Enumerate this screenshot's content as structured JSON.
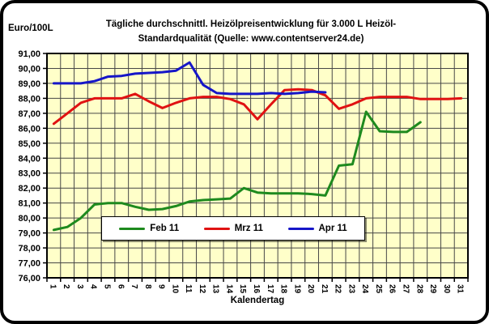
{
  "header": {
    "title_line1": "Tägliche durchschnittl. Heizölpreisentwicklung für 3.000 L Heizöl-",
    "title_line2": "Standardqualität (Quelle: www.contentserver24.de)"
  },
  "chart_data": {
    "type": "line",
    "title": "Tägliche durchschnittl. Heizölpreisentwicklung für 3.000 L Heizöl-Standardqualität (Quelle: www.contentserver24.de)",
    "xlabel": "Kalendertag",
    "ylabel": "Euro/100L",
    "ylim": [
      76,
      91
    ],
    "y_tick_step": 1,
    "grid": true,
    "plot_bg": "#ffffc9",
    "grid_color": "#474747",
    "axis_color": "#000000",
    "legend_position": "inside-bottom",
    "y_tick_labels": [
      "91,00",
      "90,00",
      "89,00",
      "88,00",
      "87,00",
      "86,00",
      "85,00",
      "84,00",
      "83,00",
      "82,00",
      "81,00",
      "80,00",
      "79,00",
      "78,00",
      "77,00",
      "76,00"
    ],
    "x_tick_labels": [
      "1",
      "2",
      "3",
      "4",
      "5",
      "6",
      "7",
      "8",
      "9",
      "10",
      "11",
      "12",
      "13",
      "14",
      "15",
      "16",
      "17",
      "18",
      "19",
      "20",
      "21",
      "22",
      "23",
      "24",
      "25",
      "26",
      "27",
      "28",
      "29",
      "30",
      "31"
    ],
    "series": [
      {
        "name": "Feb 11",
        "color": "#1e8a1e",
        "x_start": 1,
        "values": [
          79.2,
          79.4,
          80.0,
          80.9,
          81.0,
          81.0,
          80.75,
          80.55,
          80.6,
          80.8,
          81.1,
          81.2,
          81.25,
          81.3,
          82.0,
          81.7,
          81.65,
          81.65,
          81.65,
          81.6,
          81.5,
          83.5,
          83.6,
          87.1,
          85.8,
          85.75,
          85.75,
          86.4
        ]
      },
      {
        "name": "Mrz 11",
        "color": "#e01212",
        "x_start": 1,
        "values": [
          86.3,
          87.0,
          87.7,
          88.0,
          88.0,
          88.0,
          88.3,
          87.8,
          87.35,
          87.7,
          88.0,
          88.1,
          88.1,
          87.95,
          87.6,
          86.6,
          87.6,
          88.55,
          88.6,
          88.55,
          88.2,
          87.3,
          87.6,
          88.0,
          88.1,
          88.1,
          88.1,
          87.95,
          87.95,
          87.95,
          88.0
        ]
      },
      {
        "name": "Apr 11",
        "color": "#1616c8",
        "x_start": 1,
        "values": [
          89.0,
          89.0,
          89.0,
          89.15,
          89.45,
          89.5,
          89.65,
          89.7,
          89.75,
          89.85,
          90.4,
          88.9,
          88.35,
          88.3,
          88.3,
          88.3,
          88.35,
          88.3,
          88.35,
          88.45,
          88.4
        ]
      }
    ]
  }
}
